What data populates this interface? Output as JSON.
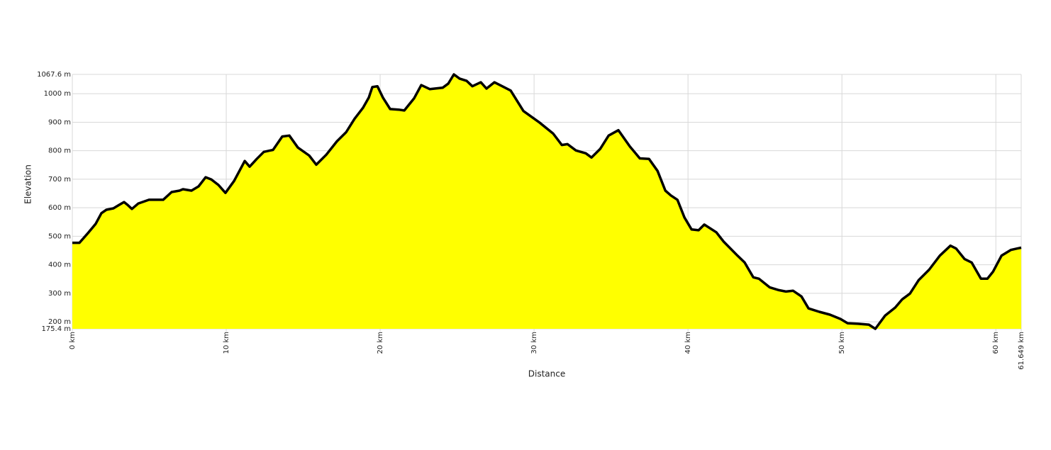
{
  "chart_data": {
    "type": "area",
    "x_label": "Distance",
    "y_label": "Elevation",
    "x": [
      0,
      0.46,
      1.06,
      1.52,
      1.89,
      2.21,
      2.67,
      3.04,
      3.36,
      3.59,
      3.87,
      4.29,
      4.98,
      5.9,
      6.45,
      6.96,
      7.19,
      7.74,
      8.2,
      8.66,
      9.03,
      9.49,
      9.95,
      10.51,
      11.2,
      11.52,
      11.98,
      12.44,
      13.04,
      13.64,
      14.1,
      14.65,
      15.39,
      15.85,
      16.5,
      17.19,
      17.79,
      18.34,
      18.89,
      19.26,
      19.49,
      19.82,
      20.18,
      20.65,
      21.2,
      21.57,
      22.21,
      22.67,
      23.23,
      24.06,
      24.42,
      24.79,
      25.16,
      25.62,
      25.99,
      26.54,
      26.91,
      27.42,
      27.93,
      28.48,
      29.31,
      30.32,
      31.24,
      31.8,
      32.17,
      32.72,
      33.36,
      33.73,
      34.29,
      34.84,
      35.48,
      36.22,
      36.87,
      37.47,
      38.02,
      38.53,
      38.89,
      39.31,
      39.77,
      40.23,
      40.69,
      41.06,
      41.84,
      42.3,
      43.22,
      43.68,
      44.24,
      44.61,
      45.3,
      45.9,
      46.36,
      46.82,
      47.37,
      47.83,
      48.53,
      49.22,
      49.91,
      50.37,
      51.06,
      51.75,
      52.17,
      52.81,
      53.46,
      53.92,
      54.42,
      54.98,
      55.67,
      56.36,
      57.05,
      57.42,
      57.97,
      58.43,
      59.03,
      59.45,
      59.82,
      60.37,
      60.97,
      61.38,
      61.649
    ],
    "values": [
      477,
      477,
      514,
      544,
      581,
      593,
      598,
      610,
      620,
      610,
      596,
      615,
      628,
      628,
      655,
      660,
      665,
      660,
      675,
      707,
      699,
      680,
      652,
      694,
      764,
      744,
      771,
      796,
      803,
      850,
      853,
      811,
      783,
      751,
      786,
      833,
      865,
      912,
      951,
      986,
      1023,
      1026,
      986,
      946,
      944,
      941,
      984,
      1030,
      1016,
      1021,
      1035,
      1067.6,
      1053,
      1045,
      1026,
      1040,
      1018,
      1040,
      1026,
      1011,
      939,
      900,
      860,
      820,
      823,
      801,
      791,
      776,
      806,
      853,
      872,
      815,
      773,
      771,
      729,
      660,
      643,
      628,
      566,
      524,
      521,
      541,
      514,
      482,
      432,
      408,
      356,
      351,
      321,
      311,
      306,
      309,
      289,
      247,
      235,
      225,
      210,
      195,
      193,
      190,
      175.4,
      222,
      250,
      279,
      299,
      346,
      383,
      432,
      467,
      457,
      420,
      408,
      351,
      351,
      376,
      432,
      452,
      457,
      460
    ],
    "color": "#ffff00",
    "line_color": "#000000",
    "xlim": [
      0,
      61.649
    ],
    "xticks": [
      {
        "value": 0,
        "label": "0 km"
      },
      {
        "value": 10,
        "label": "10 km"
      },
      {
        "value": 20,
        "label": "20 km"
      },
      {
        "value": 30,
        "label": "30 km"
      },
      {
        "value": 40,
        "label": "40 km"
      },
      {
        "value": 50,
        "label": "50 km"
      },
      {
        "value": 60,
        "label": "60 km"
      },
      {
        "value": 61.649,
        "label": "61.649 km"
      }
    ],
    "ylim": [
      175.4,
      1067.6
    ],
    "yticks": [
      {
        "value": 175.4,
        "label": "175.4 m"
      },
      {
        "value": 200,
        "label": "200 m"
      },
      {
        "value": 300,
        "label": "300 m"
      },
      {
        "value": 400,
        "label": "400 m"
      },
      {
        "value": 500,
        "label": "500 m"
      },
      {
        "value": 600,
        "label": "600 m"
      },
      {
        "value": 700,
        "label": "700 m"
      },
      {
        "value": 800,
        "label": "800 m"
      },
      {
        "value": 900,
        "label": "900 m"
      },
      {
        "value": 1000,
        "label": "1000 m"
      },
      {
        "value": 1067.6,
        "label": "1067.6 m"
      }
    ],
    "grid": true
  }
}
